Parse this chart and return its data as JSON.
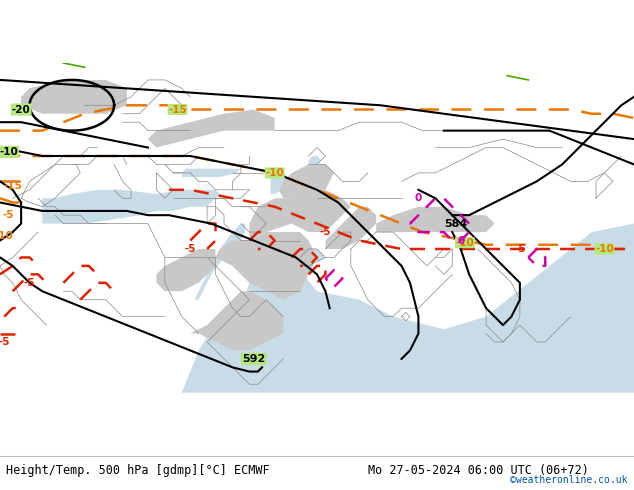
{
  "title_left": "Height/Temp. 500 hPa [gdmp][°C] ECMWF",
  "title_right": "Mo 27-05-2024 06:00 UTC (06+72)",
  "copyright": "©weatheronline.co.uk",
  "bg_color": "#b5e87a",
  "water_color": "#c8dce8",
  "gray_land_color": "#c8c8c8",
  "border_color": "#888888",
  "fig_width": 6.34,
  "fig_height": 4.9,
  "dpi": 100,
  "copyright_color": "#0055aa",
  "title_fontsize": 8.5,
  "lon_min": -15,
  "lon_max": 135,
  "lat_min": -10,
  "lat_max": 68
}
